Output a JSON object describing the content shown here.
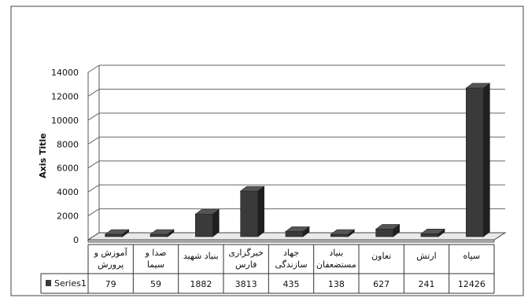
{
  "chart_data": {
    "type": "bar",
    "title": "",
    "xlabel": "",
    "ylabel": "Axis Title",
    "ylim": [
      0,
      14000
    ],
    "yticks": [
      "0",
      "2000",
      "4000",
      "6000",
      "8000",
      "10000",
      "12000",
      "14000"
    ],
    "grid": true,
    "three_d": true,
    "bar_color": "#3a3a3a",
    "categories": [
      [
        "آموزش و",
        "پرورش"
      ],
      [
        "صدا و",
        "سیما"
      ],
      [
        "بنیاد شهید"
      ],
      [
        "خبرگزاری",
        "فارس"
      ],
      [
        "جهاد",
        "سازندگی"
      ],
      [
        "بنیاد",
        "مستضعفان"
      ],
      [
        "تعاون"
      ],
      [
        "ارتش"
      ],
      [
        "سپاه"
      ]
    ],
    "series": [
      {
        "name": "Series1",
        "values": [
          79,
          59,
          1882,
          3813,
          435,
          138,
          627,
          241,
          12426
        ],
        "labels": [
          "79",
          "59",
          "1882",
          "3813",
          "435",
          "138",
          "627",
          "241",
          "12426"
        ]
      }
    ],
    "data_table": true
  }
}
